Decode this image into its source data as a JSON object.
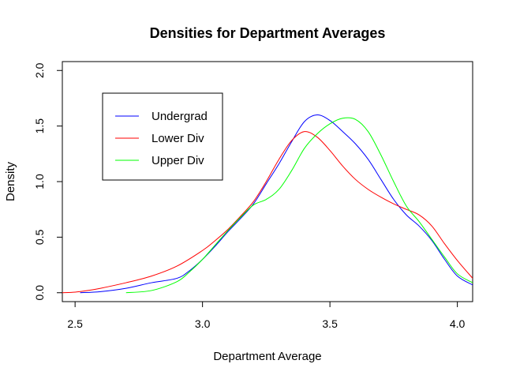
{
  "chart_data": {
    "type": "line",
    "title": "Densities for Department Averages",
    "xlabel": "Department Average",
    "ylabel": "Density",
    "xlim": [
      2.45,
      4.06
    ],
    "ylim": [
      -0.08,
      2.08
    ],
    "xticks": [
      "2.5",
      "3.0",
      "3.5",
      "4.0"
    ],
    "yticks": [
      "0.0",
      "0.5",
      "1.0",
      "1.5",
      "2.0"
    ],
    "grid": false,
    "legend_position": "top-left",
    "series": [
      {
        "name": "Undergrad",
        "color": "#0000ff",
        "points": [
          [
            2.52,
            0.0
          ],
          [
            2.6,
            0.01
          ],
          [
            2.7,
            0.04
          ],
          [
            2.8,
            0.09
          ],
          [
            2.9,
            0.13
          ],
          [
            2.95,
            0.2
          ],
          [
            3.0,
            0.3
          ],
          [
            3.05,
            0.42
          ],
          [
            3.1,
            0.55
          ],
          [
            3.15,
            0.67
          ],
          [
            3.2,
            0.8
          ],
          [
            3.25,
            0.98
          ],
          [
            3.3,
            1.16
          ],
          [
            3.35,
            1.36
          ],
          [
            3.4,
            1.54
          ],
          [
            3.45,
            1.6
          ],
          [
            3.5,
            1.55
          ],
          [
            3.55,
            1.45
          ],
          [
            3.6,
            1.34
          ],
          [
            3.65,
            1.2
          ],
          [
            3.7,
            1.02
          ],
          [
            3.75,
            0.84
          ],
          [
            3.8,
            0.7
          ],
          [
            3.85,
            0.6
          ],
          [
            3.9,
            0.47
          ],
          [
            3.95,
            0.3
          ],
          [
            4.0,
            0.15
          ],
          [
            4.06,
            0.07
          ]
        ]
      },
      {
        "name": "Lower Div",
        "color": "#ff0000",
        "points": [
          [
            2.45,
            0.0
          ],
          [
            2.5,
            0.005
          ],
          [
            2.55,
            0.02
          ],
          [
            2.6,
            0.04
          ],
          [
            2.7,
            0.09
          ],
          [
            2.8,
            0.15
          ],
          [
            2.9,
            0.24
          ],
          [
            3.0,
            0.38
          ],
          [
            3.05,
            0.47
          ],
          [
            3.1,
            0.57
          ],
          [
            3.15,
            0.69
          ],
          [
            3.2,
            0.82
          ],
          [
            3.25,
            1.0
          ],
          [
            3.3,
            1.2
          ],
          [
            3.35,
            1.37
          ],
          [
            3.4,
            1.45
          ],
          [
            3.45,
            1.4
          ],
          [
            3.5,
            1.28
          ],
          [
            3.55,
            1.14
          ],
          [
            3.6,
            1.02
          ],
          [
            3.65,
            0.93
          ],
          [
            3.7,
            0.86
          ],
          [
            3.75,
            0.8
          ],
          [
            3.8,
            0.75
          ],
          [
            3.85,
            0.7
          ],
          [
            3.9,
            0.6
          ],
          [
            3.95,
            0.44
          ],
          [
            4.0,
            0.29
          ],
          [
            4.06,
            0.13
          ]
        ]
      },
      {
        "name": "Upper Div",
        "color": "#00ff00",
        "points": [
          [
            2.7,
            0.0
          ],
          [
            2.8,
            0.02
          ],
          [
            2.9,
            0.1
          ],
          [
            2.95,
            0.19
          ],
          [
            3.0,
            0.3
          ],
          [
            3.05,
            0.43
          ],
          [
            3.1,
            0.56
          ],
          [
            3.15,
            0.68
          ],
          [
            3.2,
            0.79
          ],
          [
            3.25,
            0.84
          ],
          [
            3.3,
            0.93
          ],
          [
            3.35,
            1.1
          ],
          [
            3.4,
            1.3
          ],
          [
            3.45,
            1.43
          ],
          [
            3.5,
            1.52
          ],
          [
            3.55,
            1.57
          ],
          [
            3.6,
            1.56
          ],
          [
            3.65,
            1.45
          ],
          [
            3.7,
            1.24
          ],
          [
            3.75,
            1.0
          ],
          [
            3.8,
            0.78
          ],
          [
            3.85,
            0.64
          ],
          [
            3.9,
            0.48
          ],
          [
            3.95,
            0.32
          ],
          [
            4.0,
            0.17
          ],
          [
            4.06,
            0.09
          ]
        ]
      }
    ]
  }
}
